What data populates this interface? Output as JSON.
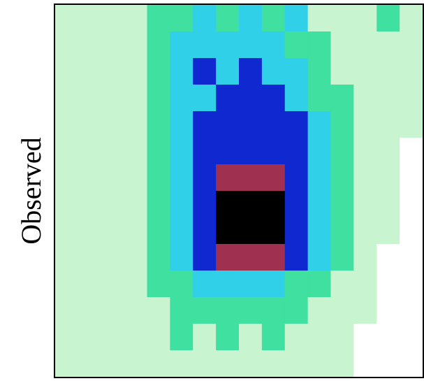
{
  "chart_data": {
    "type": "heatmap",
    "ylabel": "Observed",
    "colors": [
      "#ffffff",
      "#c8f5d0",
      "#3fe0a0",
      "#30d0e8",
      "#1028d0",
      "#a03050",
      "#000000"
    ],
    "z": [
      [
        1,
        1,
        1,
        1,
        2,
        2,
        3,
        2,
        3,
        2,
        3,
        1,
        1,
        1,
        2,
        1
      ],
      [
        1,
        1,
        1,
        1,
        2,
        3,
        3,
        3,
        3,
        3,
        2,
        2,
        1,
        1,
        1,
        1
      ],
      [
        1,
        1,
        1,
        1,
        2,
        3,
        4,
        3,
        4,
        3,
        3,
        2,
        1,
        1,
        1,
        1
      ],
      [
        1,
        1,
        1,
        1,
        2,
        3,
        3,
        4,
        4,
        4,
        3,
        2,
        2,
        1,
        1,
        1
      ],
      [
        1,
        1,
        1,
        1,
        2,
        3,
        4,
        4,
        4,
        4,
        4,
        3,
        2,
        1,
        1,
        1
      ],
      [
        1,
        1,
        1,
        1,
        2,
        3,
        4,
        4,
        4,
        4,
        4,
        3,
        2,
        1,
        1,
        0
      ],
      [
        1,
        1,
        1,
        1,
        2,
        3,
        4,
        5,
        5,
        5,
        4,
        3,
        2,
        1,
        1,
        0
      ],
      [
        1,
        1,
        1,
        1,
        2,
        3,
        4,
        6,
        6,
        6,
        4,
        3,
        2,
        1,
        1,
        0
      ],
      [
        1,
        1,
        1,
        1,
        2,
        3,
        4,
        6,
        6,
        6,
        4,
        3,
        2,
        1,
        1,
        0
      ],
      [
        1,
        1,
        1,
        1,
        2,
        3,
        4,
        5,
        5,
        5,
        4,
        3,
        2,
        1,
        0,
        0
      ],
      [
        1,
        1,
        1,
        1,
        2,
        2,
        3,
        3,
        3,
        3,
        2,
        2,
        1,
        1,
        0,
        0
      ],
      [
        1,
        1,
        1,
        1,
        1,
        2,
        2,
        2,
        2,
        2,
        2,
        1,
        1,
        1,
        0,
        0
      ],
      [
        1,
        1,
        1,
        1,
        1,
        2,
        1,
        2,
        1,
        2,
        1,
        1,
        1,
        0,
        0,
        0
      ],
      [
        1,
        1,
        1,
        1,
        1,
        1,
        1,
        1,
        1,
        1,
        1,
        1,
        1,
        0,
        0,
        0
      ]
    ]
  }
}
